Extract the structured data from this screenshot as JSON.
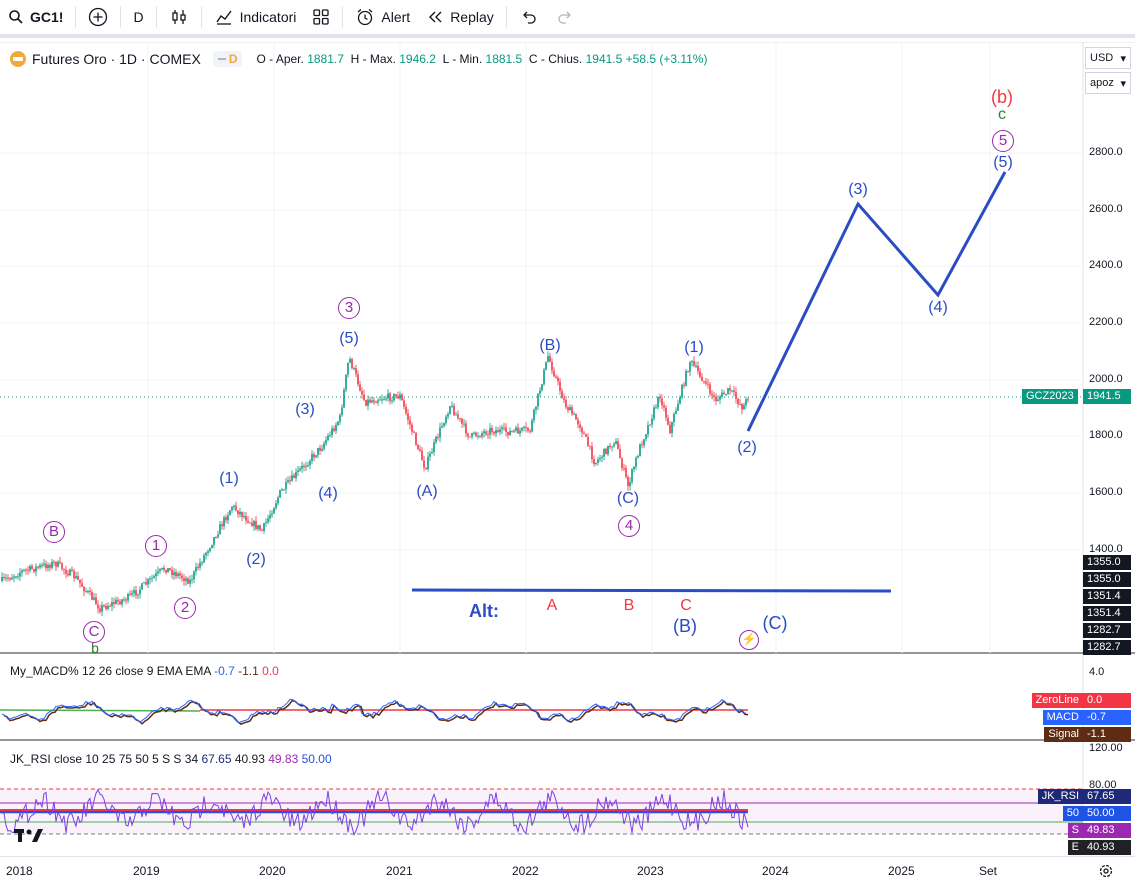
{
  "toolbar": {
    "symbol": "GC1!",
    "interval": "D",
    "indicators_label": "Indicatori",
    "alert_label": "Alert",
    "replay_label": "Replay"
  },
  "legend": {
    "title": "Futures Oro · 1D · COMEX",
    "delay_badge": "D",
    "o_label": "O - Aper.",
    "o_value": "1881.7",
    "h_label": "H - Max.",
    "h_value": "1946.2",
    "l_label": "L - Min.",
    "l_value": "1881.5",
    "c_label": "C - Chius.",
    "c_value": "1941.5",
    "change": "+58.5 (+3.11%)"
  },
  "scale_controls": {
    "currency": "USD",
    "mode": "apoz"
  },
  "price_axis": [
    "2800.0",
    "2600.0",
    "2400.0",
    "2200.0",
    "2000.0",
    "1800.0",
    "1600.0",
    "1400.0"
  ],
  "price_tags": {
    "contract": "GCZ2023",
    "last": "1941.5",
    "stack": [
      "1355.0",
      "1355.0",
      "1351.4",
      "1351.4",
      "1282.7",
      "1282.7"
    ]
  },
  "macd": {
    "legend_name": "My_MACD% 12 26 close 9 EMA EMA",
    "v1": "-0.7",
    "v2": "-1.1",
    "v3": "0.0",
    "axis_top": "4.0",
    "tags": [
      {
        "name": "ZeroLine",
        "value": "0.0",
        "color": "#f23645"
      },
      {
        "name": "MACD",
        "value": "-0.7",
        "color": "#2962ff"
      },
      {
        "name": "Signal",
        "value": "-1.1",
        "color": "#5d2c12"
      }
    ]
  },
  "rsi": {
    "legend_name": "JK_RSI close 10 25 75 50 5 S S 34",
    "v1": "67.65",
    "v2": "40.93",
    "v3": "49.83",
    "v4": "50.00",
    "axis_top": "120.00",
    "axis_80": "80.00",
    "tags": [
      {
        "name": "JK_RSI",
        "value": "67.65",
        "color": "#1e2a78"
      },
      {
        "name": "50",
        "value": "50.00",
        "color": "#1e53e5"
      },
      {
        "name": "S",
        "value": "49.83",
        "color": "#9c27b0"
      },
      {
        "name": "E",
        "value": "40.93",
        "color": "#202124"
      }
    ]
  },
  "time_axis": [
    "2018",
    "2019",
    "2020",
    "2021",
    "2022",
    "2023",
    "2024",
    "2025",
    "Set"
  ],
  "wave_labels": {
    "b_red": "(b)",
    "c_green": "c",
    "five_circ": "5",
    "five_paren": "(5)",
    "three_paren_future": "(3)",
    "four_paren_future": "(4)",
    "three_circ": "3",
    "five_top": "(5)",
    "three_mid": "(3)",
    "four_mid": "(4)",
    "one_2019": "(1)",
    "two_2019": "(2)",
    "B_paren": "(B)",
    "A_paren": "(A)",
    "C_paren": "(C)",
    "four_circ": "4",
    "one_2023": "(1)",
    "two_2023": "(2)",
    "B_circ": "B",
    "one_circ": "1",
    "two_circ": "2",
    "C_circ": "C",
    "b_green": "b",
    "alt": "Alt:",
    "A_red": "A",
    "B_red": "B",
    "C_red": "C",
    "B_blue_big": "(B)",
    "C_blue_big": "(C)"
  },
  "colors": {
    "up": "#089981",
    "down": "#f23645",
    "wave": "#2a4cc4",
    "purple": "#9c27b0"
  }
}
